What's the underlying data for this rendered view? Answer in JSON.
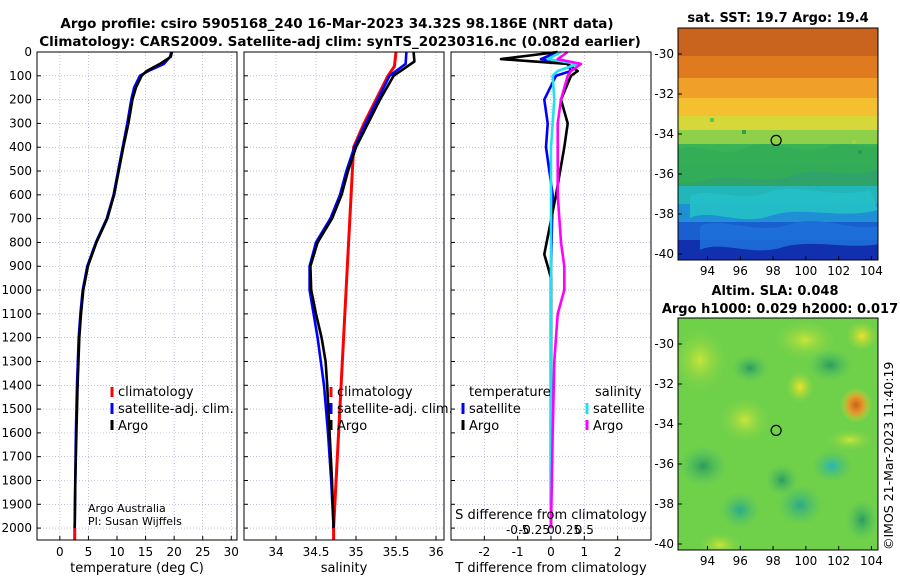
{
  "titles": {
    "line1": "Argo profile: csiro 5905168_240 16-Mar-2023 34.32S 98.186E (NRT data)",
    "line2": "Climatology: CARS2009. Satellite-adj clim: synTS_20230316.nc (0.082d earlier)"
  },
  "credit": {
    "line1": "Argo Australia",
    "line2": "PI: Susan Wijffels"
  },
  "watermark": "©IMOS 21-Mar-2023 11:40:19",
  "colors": {
    "climatology": "#ff0000",
    "satellite": "#0000ff",
    "argo": "#000000",
    "sat_cyan": "#22e0f0",
    "argo_magenta": "#ff00ff"
  },
  "legend_left": [
    "climatology",
    "satellite-adj. clim.",
    "Argo"
  ],
  "legend_diff": {
    "temp_header": "temperature",
    "sal_header": "salinity",
    "satellite": "satellite",
    "argo": "Argo"
  },
  "chart_data": [
    {
      "type": "line",
      "name": "temperature",
      "xlabel": "temperature (deg C)",
      "ylabel": "",
      "xlim": [
        -4,
        31
      ],
      "ylim": [
        2050,
        0
      ],
      "xticks": [
        0,
        5,
        10,
        15,
        20,
        25,
        30
      ],
      "yticks": [
        0,
        100,
        200,
        300,
        400,
        500,
        600,
        700,
        800,
        900,
        1000,
        1100,
        1200,
        1300,
        1400,
        1500,
        1600,
        1700,
        1800,
        1900,
        2000
      ],
      "grid": true,
      "series": [
        {
          "name": "climatology",
          "depth": [
            2000,
            2050
          ],
          "values": [
            2.6,
            2.6
          ]
        },
        {
          "name": "satellite-adj. clim.",
          "depth": [
            0,
            20,
            50,
            80,
            100,
            150,
            200,
            300,
            400,
            500,
            600,
            700,
            800,
            900,
            1000,
            1100,
            1200,
            1400,
            1600,
            1800,
            2000
          ],
          "values": [
            19.5,
            19.3,
            18.2,
            15.5,
            14.0,
            13.0,
            12.5,
            11.8,
            11.0,
            10.2,
            9.4,
            8.2,
            6.3,
            4.8,
            4.0,
            3.6,
            3.3,
            3.0,
            2.8,
            2.7,
            2.6
          ]
        },
        {
          "name": "Argo",
          "depth": [
            0,
            20,
            50,
            80,
            100,
            150,
            200,
            300,
            400,
            500,
            600,
            700,
            800,
            900,
            1000,
            1100,
            1200,
            1400,
            1600,
            1800,
            2000
          ],
          "values": [
            19.6,
            19.4,
            17.5,
            15.2,
            14.3,
            13.3,
            12.7,
            12.0,
            11.1,
            10.3,
            9.5,
            8.3,
            6.4,
            4.9,
            4.1,
            3.7,
            3.4,
            3.1,
            2.9,
            2.7,
            2.6
          ]
        }
      ]
    },
    {
      "type": "line",
      "name": "salinity",
      "xlabel": "salinity",
      "xlim": [
        33.6,
        36.1
      ],
      "ylim": [
        2050,
        0
      ],
      "xticks": [
        34,
        34.5,
        35,
        35.5,
        36
      ],
      "grid": true,
      "series": [
        {
          "name": "climatology",
          "depth": [
            0,
            60,
            100,
            200,
            300,
            400,
            2000,
            2050
          ],
          "values": [
            35.5,
            35.48,
            35.4,
            35.25,
            35.1,
            34.97,
            34.72,
            34.72
          ]
        },
        {
          "name": "satellite-adj. clim.",
          "depth": [
            0,
            50,
            80,
            100,
            200,
            300,
            400,
            500,
            600,
            700,
            800,
            900,
            1000,
            1100,
            1200,
            1400,
            1600,
            1800,
            2000
          ],
          "values": [
            35.63,
            35.62,
            35.5,
            35.42,
            35.27,
            35.12,
            34.98,
            34.88,
            34.8,
            34.68,
            34.5,
            34.42,
            34.42,
            34.47,
            34.52,
            34.6,
            34.65,
            34.69,
            34.72
          ]
        },
        {
          "name": "Argo",
          "depth": [
            0,
            40,
            70,
            100,
            200,
            300,
            400,
            500,
            600,
            700,
            800,
            900,
            1000,
            1100,
            1200,
            1300,
            1400,
            1600,
            1800,
            2000
          ],
          "values": [
            35.72,
            35.73,
            35.6,
            35.47,
            35.3,
            35.15,
            35.0,
            34.9,
            34.82,
            34.7,
            34.52,
            34.43,
            34.44,
            34.5,
            34.57,
            34.62,
            34.64,
            34.67,
            34.7,
            34.72
          ]
        }
      ]
    },
    {
      "type": "line",
      "name": "difference",
      "xlabel": "T difference from climatology",
      "xlabel_top": "S difference from climatology",
      "xlim": [
        -3,
        3
      ],
      "ylim": [
        2050,
        0
      ],
      "xticks": [
        -2,
        -1,
        0,
        1,
        2
      ],
      "xticklabels": [
        "-2",
        "-1",
        "0",
        "1",
        "2"
      ],
      "xticks_top": [
        -1,
        -0.5,
        0,
        0.5,
        1
      ],
      "xticklabels_top": [
        "-0.5",
        "-0.25",
        "0",
        "0.25",
        "0.5"
      ],
      "grid": true,
      "series": [
        {
          "name": "temperature satellite",
          "depth": [
            0,
            30,
            50,
            80,
            100,
            200,
            300,
            400,
            600,
            900,
            1200,
            1600,
            2000
          ],
          "values": [
            0.2,
            -0.3,
            0.5,
            0.6,
            0.15,
            -0.2,
            -0.1,
            -0.15,
            0.05,
            0,
            0,
            0,
            0
          ]
        },
        {
          "name": "temperature Argo",
          "depth": [
            0,
            30,
            50,
            80,
            100,
            200,
            300,
            400,
            600,
            850,
            900,
            950,
            1200,
            1600,
            2000
          ],
          "values": [
            0.2,
            -1.5,
            0.5,
            0.8,
            0.6,
            0.3,
            0.5,
            0.4,
            0.15,
            -0.2,
            -0.1,
            0,
            0,
            0,
            0
          ]
        },
        {
          "name": "salinity satellite",
          "depth": [
            0,
            30,
            50,
            80,
            100,
            200,
            300,
            400,
            600,
            900,
            1200,
            1600,
            2000
          ],
          "values": [
            0.3,
            -0.1,
            0.8,
            0.2,
            0.05,
            0.1,
            0.05,
            0,
            0,
            0,
            0,
            0,
            0
          ]
        },
        {
          "name": "salinity Argo",
          "depth": [
            0,
            30,
            50,
            80,
            100,
            200,
            300,
            400,
            600,
            800,
            900,
            1000,
            1100,
            1300,
            1600,
            2000
          ],
          "values": [
            0.5,
            0.2,
            0.9,
            0.6,
            0.5,
            0.3,
            0.2,
            0.2,
            0.2,
            0.3,
            0.4,
            0.4,
            0.2,
            0.1,
            0.05,
            0
          ]
        }
      ]
    },
    {
      "type": "heatmap",
      "name": "sst-map",
      "title": "sat. SST: 19.7 Argo: 19.4",
      "xticks": [
        94,
        96,
        98,
        100,
        102,
        104
      ],
      "yticks": [
        -30,
        -32,
        -34,
        -36,
        -38,
        -40
      ],
      "xlim": [
        92.2,
        104.4
      ],
      "ylim": [
        -40.3,
        -28.7
      ],
      "marker": {
        "lon": 98.186,
        "lat": -34.32
      }
    },
    {
      "type": "heatmap",
      "name": "sla-map",
      "title": "Altim. SLA: 0.048",
      "subtitle": "Argo h1000: 0.029 h2000: 0.017",
      "xticks": [
        94,
        96,
        98,
        100,
        102,
        104
      ],
      "yticks": [
        -30,
        -32,
        -34,
        -36,
        -38,
        -40
      ],
      "xlim": [
        92.2,
        104.4
      ],
      "ylim": [
        -40.3,
        -28.7
      ],
      "marker": {
        "lon": 98.186,
        "lat": -34.32
      }
    }
  ]
}
